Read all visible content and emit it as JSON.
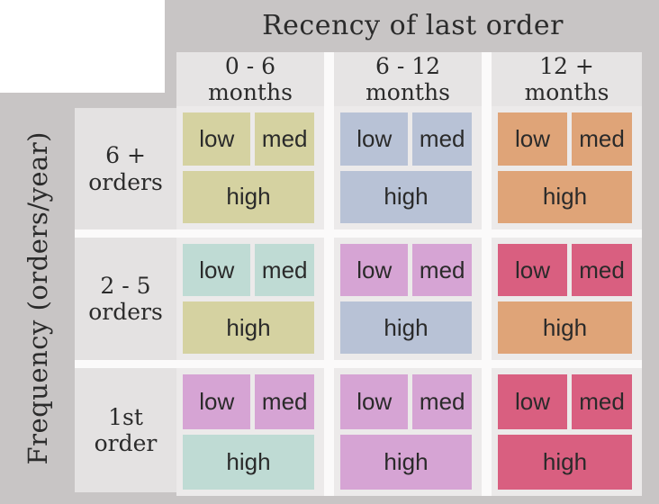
{
  "title": "Recency of last order",
  "axis": {
    "y_label": "Frequency (orders/year)"
  },
  "colors": {
    "khaki": "#d5d2a1",
    "blue": "#b8c2d6",
    "orange": "#dfa478",
    "mint": "#bfdbd4",
    "orchid": "#d6a4d4",
    "rose": "#d95f80",
    "background": "#c8c5c5",
    "panel": "#eceaea",
    "text": "#2b2b2b",
    "gutter": "#fbfafa"
  },
  "grid": {
    "columns": [
      {
        "line1": "0 - 6",
        "line2": "months"
      },
      {
        "line1": "6 - 12",
        "line2": "months"
      },
      {
        "line1": "12 +",
        "line2": "months"
      }
    ],
    "rows": [
      {
        "line1": "6 +",
        "line2": "orders"
      },
      {
        "line1": "2 - 5",
        "line2": "orders"
      },
      {
        "line1": "1st",
        "line2": "order"
      }
    ],
    "block_labels": {
      "low": "low",
      "med": "med",
      "high": "high"
    },
    "cells": [
      [
        {
          "low": "khaki",
          "med": "khaki",
          "high": "khaki"
        },
        {
          "low": "blue",
          "med": "blue",
          "high": "blue"
        },
        {
          "low": "orange",
          "med": "orange",
          "high": "orange"
        }
      ],
      [
        {
          "low": "mint",
          "med": "mint",
          "high": "khaki"
        },
        {
          "low": "orchid",
          "med": "orchid",
          "high": "blue"
        },
        {
          "low": "rose",
          "med": "rose",
          "high": "orange"
        }
      ],
      [
        {
          "low": "orchid",
          "med": "orchid",
          "high": "mint"
        },
        {
          "low": "orchid",
          "med": "orchid",
          "high": "orchid"
        },
        {
          "low": "rose",
          "med": "rose",
          "high": "rose"
        }
      ]
    ]
  }
}
